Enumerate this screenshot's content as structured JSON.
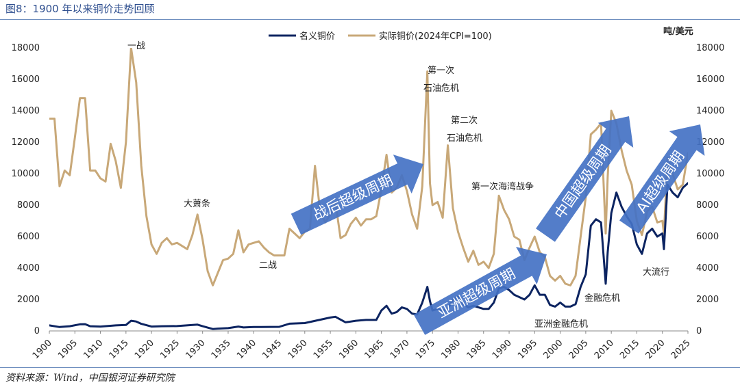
{
  "figure_title": "图8：1900 年以来铜价走势回顾",
  "source_note": "资料来源：Wind，中国银河证券研究院",
  "colors": {
    "nominal": "#0c2461",
    "real": "#c8a878",
    "arrow": "#4472c4",
    "rule": "#6f8fbf"
  },
  "chart_data": {
    "type": "line",
    "title": "",
    "y2_unit_label": "吨/美元",
    "ylim": [
      0,
      18000
    ],
    "xlim": [
      1900,
      2025
    ],
    "yticks": [
      0,
      2000,
      4000,
      6000,
      8000,
      10000,
      12000,
      14000,
      16000,
      18000
    ],
    "ytick_labels": [
      "0",
      "2000",
      "4000",
      "6000",
      "8000",
      "10000",
      "12000",
      "14000",
      "16000",
      "18000"
    ],
    "xticks": [
      1900,
      1905,
      1910,
      1915,
      1920,
      1925,
      1930,
      1935,
      1940,
      1945,
      1950,
      1955,
      1960,
      1965,
      1970,
      1975,
      1980,
      1985,
      1990,
      1995,
      2000,
      2005,
      2010,
      2015,
      2020,
      2025
    ],
    "xtick_labels": [
      "1900",
      "1905",
      "1910",
      "1915",
      "1920",
      "1925",
      "1930",
      "1935",
      "1940",
      "1945",
      "1950",
      "1955",
      "1960",
      "1965",
      "1970",
      "1975",
      "1980",
      "1985",
      "1990",
      "1995",
      "2000",
      "2005",
      "2010",
      "2015",
      "2020",
      "2025"
    ],
    "legend_position": "top-center",
    "series": [
      {
        "name": "名义铜价",
        "x": [
          1900,
          1902,
          1904,
          1906,
          1907,
          1908,
          1910,
          1913,
          1915,
          1916,
          1917,
          1918,
          1920,
          1922,
          1925,
          1929,
          1930,
          1932,
          1933,
          1935,
          1937,
          1938,
          1940,
          1945,
          1947,
          1950,
          1955,
          1956,
          1958,
          1960,
          1962,
          1964,
          1965,
          1966,
          1967,
          1968,
          1969,
          1970,
          1971,
          1972,
          1973,
          1974,
          1974.5,
          1975,
          1976,
          1977,
          1978,
          1979,
          1980,
          1981,
          1982,
          1983,
          1985,
          1986,
          1987,
          1988,
          1989,
          1990,
          1991,
          1993,
          1994,
          1995,
          1996,
          1997,
          1998,
          1999,
          2000,
          2001,
          2002,
          2003,
          2004,
          2005,
          2006,
          2007,
          2008,
          2008.9,
          2009.3,
          2010,
          2011,
          2012,
          2013,
          2014,
          2015,
          2016,
          2017,
          2018,
          2019,
          2020,
          2020.3,
          2021,
          2022,
          2023,
          2024,
          2025
        ],
        "values": [
          350,
          250,
          300,
          420,
          430,
          300,
          280,
          350,
          380,
          650,
          600,
          450,
          280,
          300,
          310,
          400,
          300,
          120,
          150,
          180,
          280,
          220,
          250,
          260,
          460,
          500,
          850,
          900,
          550,
          650,
          700,
          700,
          1300,
          1600,
          1100,
          1200,
          1500,
          1400,
          1100,
          1050,
          1800,
          2800,
          1900,
          1300,
          1400,
          1300,
          1400,
          2000,
          2200,
          1700,
          1500,
          1600,
          1400,
          1400,
          1800,
          2700,
          2800,
          2600,
          2300,
          2000,
          2300,
          2900,
          2300,
          2300,
          1650,
          1550,
          1800,
          1550,
          1550,
          1700,
          2800,
          3600,
          6700,
          7100,
          6900,
          3000,
          5000,
          7500,
          8800,
          7900,
          7300,
          6800,
          5500,
          4900,
          6200,
          6500,
          6000,
          6200,
          5200,
          9300,
          8800,
          8500,
          9100,
          9400
        ]
      },
      {
        "name": "实际铜价(2024年CPI=100)",
        "x": [
          1900,
          1901,
          1902,
          1903,
          1904,
          1905,
          1906,
          1907,
          1908,
          1909,
          1910,
          1911,
          1912,
          1913,
          1914,
          1915,
          1916,
          1917,
          1918,
          1919,
          1920,
          1921,
          1922,
          1923,
          1924,
          1925,
          1926,
          1927,
          1928,
          1929,
          1930,
          1931,
          1932,
          1933,
          1934,
          1935,
          1936,
          1937,
          1938,
          1939,
          1940,
          1941,
          1942,
          1943,
          1944,
          1945,
          1946,
          1947,
          1948,
          1949,
          1950,
          1951,
          1952,
          1953,
          1954,
          1955,
          1956,
          1957,
          1958,
          1959,
          1960,
          1961,
          1962,
          1963,
          1964,
          1965,
          1966,
          1967,
          1968,
          1969,
          1970,
          1971,
          1972,
          1973,
          1974,
          1974.5,
          1975,
          1976,
          1977,
          1978,
          1979,
          1980,
          1981,
          1982,
          1983,
          1984,
          1985,
          1986,
          1987,
          1988,
          1989,
          1990,
          1991,
          1992,
          1993,
          1994,
          1995,
          1996,
          1997,
          1998,
          1999,
          2000,
          2001,
          2002,
          2003,
          2004,
          2005,
          2006,
          2007,
          2008,
          2008.9,
          2009.3,
          2010,
          2011,
          2012,
          2013,
          2014,
          2015,
          2016,
          2017,
          2018,
          2019,
          2020,
          2020.3,
          2021,
          2022,
          2023,
          2024,
          2025
        ],
        "values": [
          13500,
          13500,
          9200,
          10200,
          9900,
          12300,
          14800,
          14800,
          10200,
          10200,
          9700,
          9500,
          11900,
          10800,
          9100,
          12000,
          18000,
          15800,
          10500,
          7300,
          5500,
          4900,
          5600,
          5900,
          5500,
          5600,
          5400,
          5200,
          6100,
          7400,
          5800,
          3800,
          2900,
          3700,
          4500,
          4600,
          4900,
          6400,
          5000,
          5500,
          5600,
          5700,
          5300,
          5000,
          4800,
          4800,
          4800,
          6500,
          6200,
          5900,
          6300,
          6500,
          10500,
          7600,
          6900,
          7400,
          8200,
          5900,
          6100,
          6800,
          7200,
          6700,
          7100,
          7100,
          7300,
          9000,
          11200,
          8800,
          9100,
          9900,
          8900,
          7400,
          6500,
          9200,
          16500,
          9400,
          8000,
          8200,
          7200,
          11800,
          7800,
          6300,
          5300,
          4400,
          5100,
          4200,
          4400,
          4000,
          4900,
          8600,
          7700,
          7100,
          6000,
          5800,
          4500,
          5300,
          6000,
          5000,
          4700,
          3500,
          3200,
          3500,
          3000,
          2900,
          3500,
          6000,
          8500,
          12500,
          12800,
          13200,
          6200,
          9800,
          14000,
          13200,
          11500,
          10200,
          9300,
          7000,
          6100,
          7600,
          7900,
          6900,
          7000,
          6200,
          11000,
          10000,
          9000,
          9300,
          11300
        ]
      }
    ],
    "annotations": [
      "一战",
      "大萧条",
      "二战",
      "第一次",
      "石油危机",
      "第二次",
      "石油危机",
      "第一次海湾战争",
      "金融危机",
      "亚洲金融危机",
      "大流行"
    ],
    "arrows": [
      "战后超级周期",
      "亚洲超级周期",
      "中国超级周期",
      "AI超级周期"
    ]
  }
}
